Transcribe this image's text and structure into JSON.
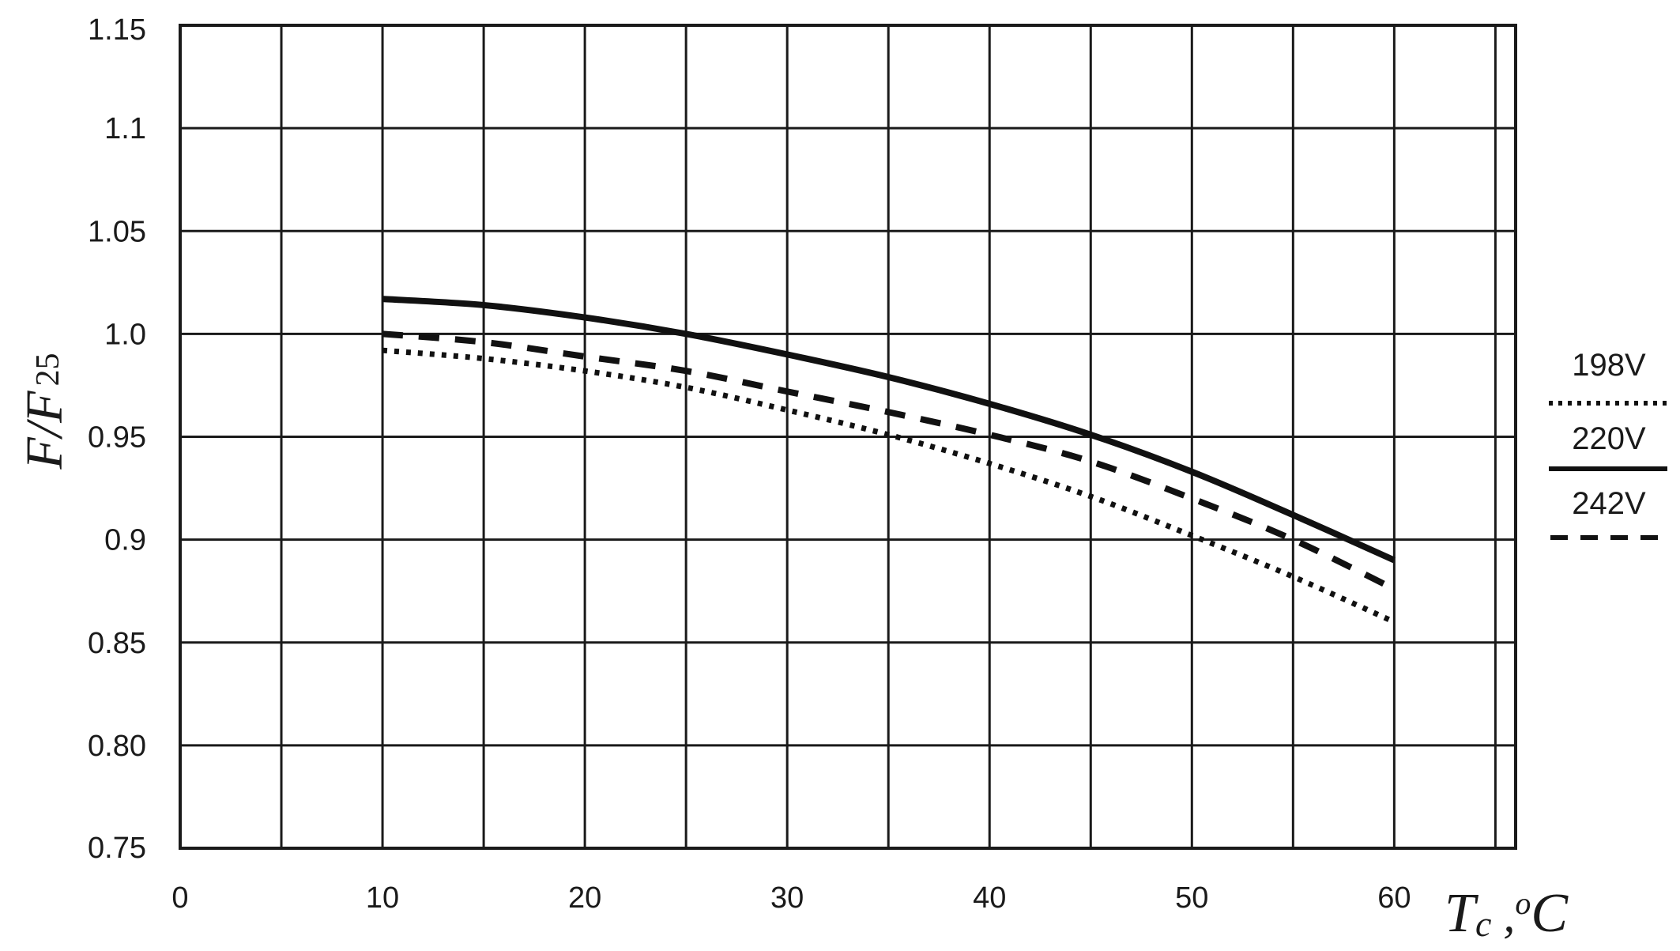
{
  "chart_data": {
    "type": "line",
    "xlabel": {
      "main": "T",
      "sub": "c",
      "sep": " ,",
      "sup": "o",
      "unit": "C"
    },
    "ylabel": {
      "main": "F/F",
      "sub": "25"
    },
    "x_ticks": [
      0,
      10,
      20,
      30,
      40,
      50,
      60
    ],
    "y_ticks": [
      "0.75",
      "0.80",
      "0.85",
      "0.9",
      "0.95",
      "1.0",
      "1.05",
      "1.1",
      "1.15"
    ],
    "xlim": [
      0,
      66
    ],
    "ylim": [
      0.75,
      1.15
    ],
    "grid": true,
    "legend_position": "right",
    "series": [
      {
        "name": "220V",
        "style": "solid",
        "x": [
          10,
          15,
          20,
          25,
          30,
          35,
          40,
          45,
          50,
          55,
          60
        ],
        "y": [
          1.017,
          1.014,
          1.008,
          1.0,
          0.99,
          0.979,
          0.966,
          0.951,
          0.933,
          0.912,
          0.89
        ]
      },
      {
        "name": "242V",
        "style": "dashed",
        "x": [
          10,
          15,
          20,
          25,
          30,
          35,
          40,
          45,
          50,
          55,
          60
        ],
        "y": [
          1.0,
          0.996,
          0.989,
          0.982,
          0.972,
          0.962,
          0.951,
          0.938,
          0.92,
          0.9,
          0.876
        ]
      },
      {
        "name": "198V",
        "style": "dotted",
        "x": [
          10,
          15,
          20,
          25,
          30,
          35,
          40,
          45,
          50,
          55,
          60
        ],
        "y": [
          0.992,
          0.988,
          0.982,
          0.974,
          0.963,
          0.951,
          0.937,
          0.921,
          0.902,
          0.882,
          0.86
        ]
      }
    ],
    "legend_order": [
      "198V",
      "220V",
      "242V"
    ]
  }
}
